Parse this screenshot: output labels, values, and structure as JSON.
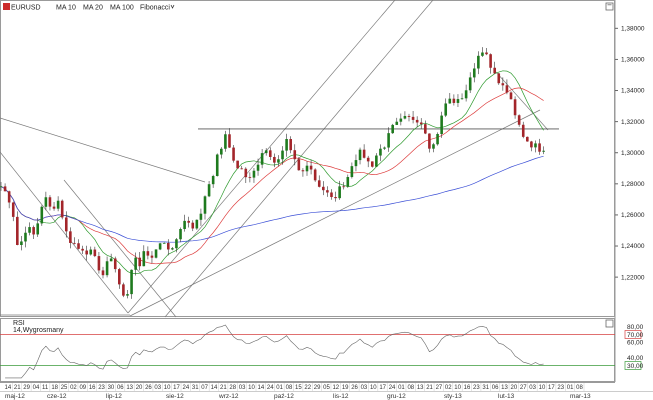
{
  "toolbar": {
    "symbol": "EURUSD",
    "indicators": [
      {
        "label": "MA 10",
        "color": "#2e9a2e"
      },
      {
        "label": "MA 20",
        "color": "#dd3b3b"
      },
      {
        "label": "MA 100",
        "color": "#3b4fd6"
      },
      {
        "label": "Fibonacci",
        "color": "#222222"
      }
    ],
    "dropdown_icon": "chevron-down-icon"
  },
  "rsi": {
    "title": "RSI",
    "subtitle": "14,Wygrosmany",
    "levels": {
      "upper": "70,00",
      "lower": "30,00"
    },
    "axis_labels": [
      "80,00",
      "60,00",
      "40,00"
    ]
  },
  "chart_data": {
    "type": "candlestick",
    "price_axis_labels": [
      "1,38000",
      "1,36000",
      "1,34000",
      "1,32000",
      "1,30000",
      "1,28000",
      "1,26000",
      "1,24000",
      "1,22000"
    ],
    "ylim": [
      1.195,
      1.395
    ],
    "horizontal_line": 1.3153,
    "date_labels": [
      "14",
      "21",
      "29",
      "04",
      "11",
      "18",
      "25",
      "02",
      "09",
      "16",
      "23",
      "30",
      "06",
      "13",
      "20",
      "26",
      "03",
      "10",
      "17",
      "24",
      "31",
      "07",
      "14",
      "21",
      "28",
      "03",
      "10",
      "14",
      "24",
      "01",
      "08",
      "15",
      "22",
      "29",
      "05",
      "12",
      "19",
      "26",
      "03",
      "10",
      "17",
      "24",
      "01",
      "08",
      "13",
      "21",
      "27",
      "02",
      "10",
      "16",
      "23",
      "31",
      "06",
      "13",
      "20",
      "27",
      "03",
      "10",
      "17",
      "23",
      "01",
      "08"
    ],
    "month_labels": [
      "maj-12",
      "cze-12",
      "lip-12",
      "sie-12",
      "wrz-12",
      "paź-12",
      "lis-12",
      "gru-12",
      "sty-13",
      "lut-13",
      "mar-13"
    ],
    "price_path": [
      [
        0,
        1.282
      ],
      [
        6,
        1.272
      ],
      [
        10,
        1.268
      ],
      [
        14,
        1.258
      ],
      [
        18,
        1.236
      ],
      [
        22,
        1.244
      ],
      [
        28,
        1.253
      ],
      [
        34,
        1.246
      ],
      [
        38,
        1.255
      ],
      [
        42,
        1.265
      ],
      [
        46,
        1.271
      ],
      [
        50,
        1.264
      ],
      [
        54,
        1.265
      ],
      [
        58,
        1.27
      ],
      [
        62,
        1.258
      ],
      [
        66,
        1.249
      ],
      [
        70,
        1.244
      ],
      [
        76,
        1.24
      ],
      [
        82,
        1.236
      ],
      [
        86,
        1.232
      ],
      [
        90,
        1.24
      ],
      [
        94,
        1.236
      ],
      [
        98,
        1.224
      ],
      [
        102,
        1.218
      ],
      [
        106,
        1.228
      ],
      [
        110,
        1.234
      ],
      [
        116,
        1.222
      ],
      [
        120,
        1.212
      ],
      [
        124,
        1.208
      ],
      [
        128,
        1.21
      ],
      [
        132,
        1.225
      ],
      [
        136,
        1.234
      ],
      [
        140,
        1.228
      ],
      [
        144,
        1.238
      ],
      [
        150,
        1.232
      ],
      [
        156,
        1.236
      ],
      [
        162,
        1.244
      ],
      [
        168,
        1.236
      ],
      [
        174,
        1.242
      ],
      [
        180,
        1.25
      ],
      [
        186,
        1.258
      ],
      [
        192,
        1.252
      ],
      [
        198,
        1.256
      ],
      [
        202,
        1.265
      ],
      [
        206,
        1.275
      ],
      [
        210,
        1.282
      ],
      [
        214,
        1.285
      ],
      [
        218,
        1.3
      ],
      [
        222,
        1.303
      ],
      [
        226,
        1.315
      ],
      [
        230,
        1.302
      ],
      [
        234,
        1.295
      ],
      [
        238,
        1.29
      ],
      [
        242,
        1.29
      ],
      [
        248,
        1.282
      ],
      [
        254,
        1.288
      ],
      [
        260,
        1.296
      ],
      [
        266,
        1.302
      ],
      [
        270,
        1.296
      ],
      [
        276,
        1.292
      ],
      [
        282,
        1.3
      ],
      [
        286,
        1.31
      ],
      [
        290,
        1.302
      ],
      [
        296,
        1.292
      ],
      [
        302,
        1.286
      ],
      [
        308,
        1.294
      ],
      [
        314,
        1.284
      ],
      [
        320,
        1.278
      ],
      [
        326,
        1.275
      ],
      [
        330,
        1.27
      ],
      [
        334,
        1.27
      ],
      [
        338,
        1.276
      ],
      [
        344,
        1.28
      ],
      [
        348,
        1.285
      ],
      [
        352,
        1.293
      ],
      [
        356,
        1.297
      ],
      [
        360,
        1.3
      ],
      [
        364,
        1.298
      ],
      [
        368,
        1.294
      ],
      [
        372,
        1.292
      ],
      [
        376,
        1.298
      ],
      [
        380,
        1.302
      ],
      [
        384,
        1.304
      ],
      [
        388,
        1.31
      ],
      [
        392,
        1.316
      ],
      [
        396,
        1.318
      ],
      [
        400,
        1.32
      ],
      [
        404,
        1.322
      ],
      [
        408,
        1.322
      ],
      [
        412,
        1.322
      ],
      [
        416,
        1.322
      ],
      [
        420,
        1.32
      ],
      [
        424,
        1.318
      ],
      [
        428,
        1.306
      ],
      [
        432,
        1.302
      ],
      [
        436,
        1.31
      ],
      [
        440,
        1.318
      ],
      [
        444,
        1.33
      ],
      [
        448,
        1.334
      ],
      [
        452,
        1.334
      ],
      [
        456,
        1.332
      ],
      [
        460,
        1.334
      ],
      [
        464,
        1.338
      ],
      [
        468,
        1.343
      ],
      [
        472,
        1.35
      ],
      [
        476,
        1.36
      ],
      [
        480,
        1.364
      ],
      [
        484,
        1.368
      ],
      [
        488,
        1.358
      ],
      [
        492,
        1.352
      ],
      [
        496,
        1.348
      ],
      [
        500,
        1.346
      ],
      [
        504,
        1.34
      ],
      [
        508,
        1.34
      ],
      [
        512,
        1.33
      ],
      [
        516,
        1.322
      ],
      [
        520,
        1.316
      ],
      [
        524,
        1.31
      ],
      [
        528,
        1.308
      ],
      [
        532,
        1.304
      ],
      [
        536,
        1.306
      ],
      [
        540,
        1.302
      ],
      [
        544,
        1.3
      ],
      [
        546,
        1.306
      ]
    ],
    "ma_periods": [
      10,
      20,
      100
    ]
  }
}
